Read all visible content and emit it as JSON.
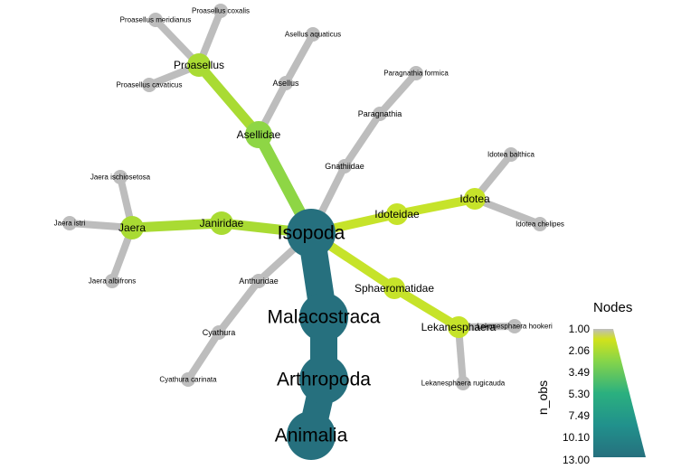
{
  "colors": {
    "leaf": "#BDBDBD",
    "level_1": "#BDBDBD",
    "level_2": "#C6E32A",
    "level_3": "#A9DB33",
    "level_4": "#8ED645",
    "level_5": "#5CC863",
    "level_13": "#26707E"
  },
  "nodes": [
    {
      "id": "animalia",
      "label": "Animalia",
      "n_obs": 13
    },
    {
      "id": "arthropoda",
      "label": "Arthropoda",
      "n_obs": 13
    },
    {
      "id": "malacostraca",
      "label": "Malacostraca",
      "n_obs": 13
    },
    {
      "id": "isopoda",
      "label": "Isopoda",
      "n_obs": 13
    },
    {
      "id": "asellidae",
      "label": "Asellidae",
      "n_obs": 4
    },
    {
      "id": "proasellus",
      "label": "Proasellus",
      "n_obs": 3
    },
    {
      "id": "proasellus_coxalis",
      "label": "Proasellus coxalis",
      "n_obs": 1
    },
    {
      "id": "proasellus_meridianus",
      "label": "Proasellus meridianus",
      "n_obs": 1
    },
    {
      "id": "proasellus_cavaticus",
      "label": "Proasellus cavaticus",
      "n_obs": 1
    },
    {
      "id": "asellus",
      "label": "Asellus",
      "n_obs": 1
    },
    {
      "id": "asellus_aquaticus",
      "label": "Asellus aquaticus",
      "n_obs": 1
    },
    {
      "id": "gnathiidae",
      "label": "Gnathiidae",
      "n_obs": 1
    },
    {
      "id": "paragnathia",
      "label": "Paragnathia",
      "n_obs": 1
    },
    {
      "id": "paragnathia_formica",
      "label": "Paragnathia formica",
      "n_obs": 1
    },
    {
      "id": "janiridae",
      "label": "Janiridae",
      "n_obs": 3
    },
    {
      "id": "jaera",
      "label": "Jaera",
      "n_obs": 3
    },
    {
      "id": "jaera_istri",
      "label": "Jaera istri",
      "n_obs": 1
    },
    {
      "id": "jaera_ischiosetosa",
      "label": "Jaera ischiosetosa",
      "n_obs": 1
    },
    {
      "id": "jaera_albifrons",
      "label": "Jaera albifrons",
      "n_obs": 1
    },
    {
      "id": "idoteidae",
      "label": "Idoteidae",
      "n_obs": 2
    },
    {
      "id": "idotea",
      "label": "Idotea",
      "n_obs": 2
    },
    {
      "id": "idotea_balthica",
      "label": "Idotea balthica",
      "n_obs": 1
    },
    {
      "id": "idotea_chelipes",
      "label": "Idotea chelipes",
      "n_obs": 1
    },
    {
      "id": "sphaeromatidae",
      "label": "Sphaeromatidae",
      "n_obs": 2
    },
    {
      "id": "lekanesphaera",
      "label": "Lekanesphaera",
      "n_obs": 2
    },
    {
      "id": "lekanesphaera_hookeri",
      "label": "Lekanesphaera hookeri",
      "n_obs": 1
    },
    {
      "id": "lekanesphaera_rugicauda",
      "label": "Lekanesphaera rugicauda",
      "n_obs": 1
    },
    {
      "id": "anthuridae",
      "label": "Anthuridae",
      "n_obs": 1
    },
    {
      "id": "cyathura",
      "label": "Cyathura",
      "n_obs": 1
    },
    {
      "id": "cyathura_carinata",
      "label": "Cyathura carinata",
      "n_obs": 1
    }
  ],
  "edges": [
    [
      "animalia",
      "arthropoda"
    ],
    [
      "arthropoda",
      "malacostraca"
    ],
    [
      "malacostraca",
      "isopoda"
    ],
    [
      "isopoda",
      "asellidae"
    ],
    [
      "asellidae",
      "proasellus"
    ],
    [
      "proasellus",
      "proasellus_coxalis"
    ],
    [
      "proasellus",
      "proasellus_meridianus"
    ],
    [
      "proasellus",
      "proasellus_cavaticus"
    ],
    [
      "asellidae",
      "asellus"
    ],
    [
      "asellus",
      "asellus_aquaticus"
    ],
    [
      "isopoda",
      "gnathiidae"
    ],
    [
      "gnathiidae",
      "paragnathia"
    ],
    [
      "paragnathia",
      "paragnathia_formica"
    ],
    [
      "isopoda",
      "janiridae"
    ],
    [
      "janiridae",
      "jaera"
    ],
    [
      "jaera",
      "jaera_istri"
    ],
    [
      "jaera",
      "jaera_ischiosetosa"
    ],
    [
      "jaera",
      "jaera_albifrons"
    ],
    [
      "isopoda",
      "idoteidae"
    ],
    [
      "idoteidae",
      "idotea"
    ],
    [
      "idotea",
      "idotea_balthica"
    ],
    [
      "idotea",
      "idotea_chelipes"
    ],
    [
      "isopoda",
      "sphaeromatidae"
    ],
    [
      "sphaeromatidae",
      "lekanesphaera"
    ],
    [
      "lekanesphaera",
      "lekanesphaera_hookeri"
    ],
    [
      "lekanesphaera",
      "lekanesphaera_rugicauda"
    ],
    [
      "isopoda",
      "anthuridae"
    ],
    [
      "anthuridae",
      "cyathura"
    ],
    [
      "cyathura",
      "cyathura_carinata"
    ]
  ],
  "legend": {
    "title": "Nodes",
    "variable": "n_obs",
    "ticks": [
      "1.00",
      "2.06",
      "3.49",
      "5.30",
      "7.49",
      "10.10",
      "13.00"
    ]
  }
}
